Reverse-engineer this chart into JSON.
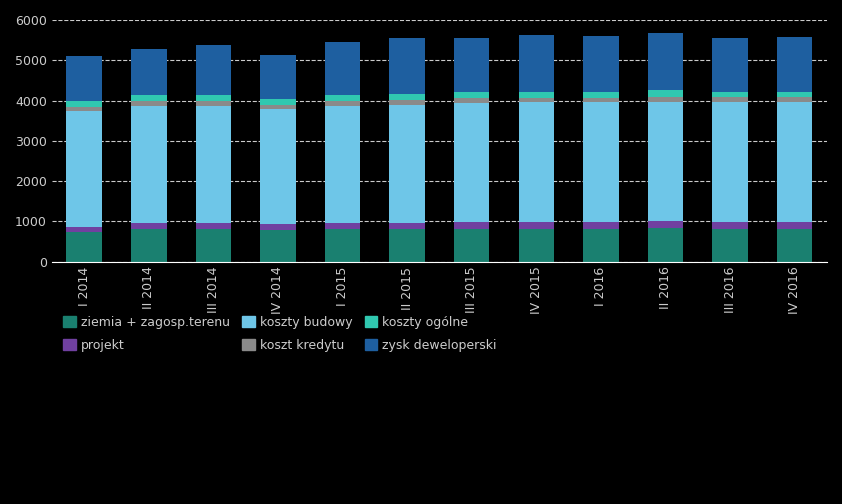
{
  "categories": [
    "I 2014",
    "II 2014",
    "III 2014",
    "IV 2014",
    "I 2015",
    "II 2015",
    "III 2015",
    "IV 2015",
    "I 2016",
    "II 2016",
    "III 2016",
    "IV 2016"
  ],
  "series": [
    {
      "label": "ziemia + zagosp.terenu",
      "color": "#1a8070",
      "values": [
        740,
        820,
        820,
        790,
        800,
        810,
        820,
        820,
        810,
        840,
        820,
        820
      ]
    },
    {
      "label": "projekt",
      "color": "#7040a0",
      "values": [
        130,
        130,
        130,
        140,
        160,
        155,
        155,
        160,
        170,
        175,
        160,
        160
      ]
    },
    {
      "label": "koszty budowy",
      "color": "#6ec6e8",
      "values": [
        2870,
        2920,
        2920,
        2850,
        2900,
        2930,
        2960,
        2980,
        2980,
        2950,
        2980,
        2980
      ]
    },
    {
      "label": "koszt kredytu",
      "color": "#8a8a8a",
      "values": [
        110,
        130,
        130,
        120,
        130,
        130,
        130,
        115,
        115,
        135,
        125,
        120
      ]
    },
    {
      "label": "koszty ogólne",
      "color": "#30c8b0",
      "values": [
        130,
        140,
        150,
        130,
        140,
        150,
        140,
        145,
        140,
        150,
        140,
        140
      ]
    },
    {
      "label": "zysk deweloperski",
      "color": "#1e5fa0",
      "values": [
        1130,
        1150,
        1230,
        1100,
        1330,
        1380,
        1360,
        1420,
        1390,
        1430,
        1320,
        1370
      ]
    }
  ],
  "ylim": [
    0,
    6000
  ],
  "yticks": [
    0,
    1000,
    2000,
    3000,
    4000,
    5000,
    6000
  ],
  "background_color": "#000000",
  "bar_width": 0.55,
  "grid_color": "white",
  "grid_style": "--",
  "text_color": "#cccccc",
  "legend_fontsize": 9,
  "tick_fontsize": 9,
  "legend_ncol": 3,
  "legend_row1": [
    "ziemia + zagosp.terenu",
    "projekt",
    "koszty budowy"
  ],
  "legend_row2": [
    "koszt kredytu",
    "koszty ogólne",
    "zysk deweloperski"
  ]
}
